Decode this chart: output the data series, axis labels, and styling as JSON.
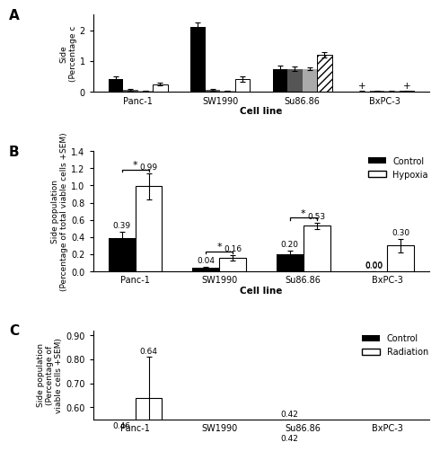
{
  "panel_A": {
    "cell_lines": [
      "Panc-1",
      "SW1990",
      "Su86.86",
      "BxPC-3"
    ],
    "bar1_values": [
      0.42,
      2.1,
      0.75,
      0.02
    ],
    "bar1_errors": [
      0.09,
      0.15,
      0.09,
      0.01
    ],
    "bar2_values": [
      0.07,
      0.07,
      0.75,
      0.03
    ],
    "bar2_errors": [
      0.02,
      0.02,
      0.06,
      0.01
    ],
    "bar3_values": [
      0.04,
      0.04,
      0.75,
      0.03
    ],
    "bar3_errors": [
      0.01,
      0.01,
      0.05,
      0.01
    ],
    "bar4_values": [
      0.25,
      0.42,
      1.2,
      0.03
    ],
    "bar4_errors": [
      0.05,
      0.08,
      0.09,
      0.01
    ],
    "ylim": [
      0,
      2.5
    ],
    "yticks": [
      0,
      1,
      2
    ]
  },
  "panel_B": {
    "cell_lines": [
      "Panc-1",
      "SW1990",
      "Su86.86",
      "BxPC-3"
    ],
    "control_values": [
      0.39,
      0.04,
      0.2,
      0.0
    ],
    "control_errors": [
      0.07,
      0.01,
      0.04,
      0.0
    ],
    "hypoxia_values": [
      0.99,
      0.16,
      0.53,
      0.3
    ],
    "hypoxia_errors": [
      0.15,
      0.03,
      0.04,
      0.08
    ],
    "control_labels": [
      "0.39",
      "0.04",
      "0.20",
      "0.00"
    ],
    "hypoxia_labels": [
      "0.99",
      "0.16",
      "0.53",
      "0.30"
    ],
    "ylim": [
      0,
      1.4
    ],
    "yticks": [
      0.0,
      0.2,
      0.4,
      0.6,
      0.8,
      1.0,
      1.2,
      1.4
    ],
    "legend_control": "Control",
    "legend_hypoxia": "Hypoxia"
  },
  "panel_C": {
    "cell_lines": [
      "Panc-1",
      "SW1990",
      "Su86.86",
      "BxPC-3"
    ],
    "control_values": [
      0.46,
      0.0,
      0.42,
      0.0
    ],
    "control_errors": [
      0.04,
      0.0,
      0.03,
      0.0
    ],
    "radiation_values": [
      0.64,
      0.0,
      0.0,
      0.0
    ],
    "radiation_errors": [
      0.17,
      0.0,
      0.0,
      0.0
    ],
    "control_labels": [
      "0.46",
      "",
      "0.42",
      ""
    ],
    "radiation_labels": [
      "0.64",
      "",
      "",
      ""
    ],
    "ylim": [
      0.55,
      0.92
    ],
    "yticks": [
      0.6,
      0.7,
      0.8,
      0.9
    ],
    "yticklabels": [
      "0.60",
      "0.70",
      "0.80",
      "0.90"
    ],
    "legend_control": "Control",
    "legend_radiation": "Radiation"
  }
}
